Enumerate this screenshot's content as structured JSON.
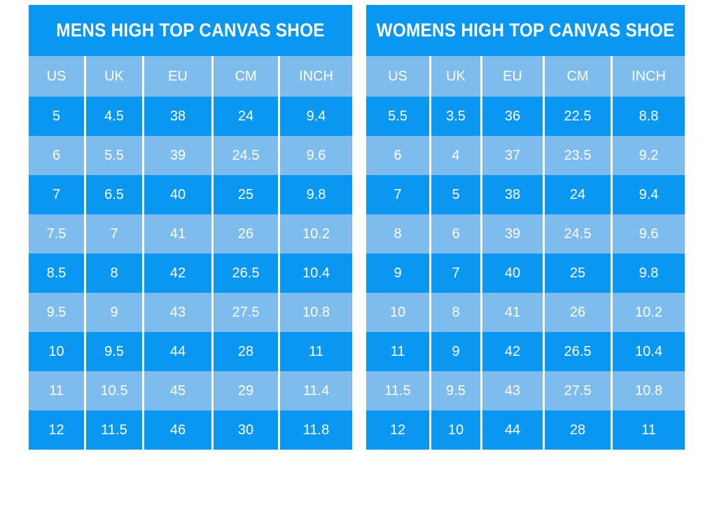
{
  "colors": {
    "dark_blue": "#0997f2",
    "light_blue": "#7dbcec",
    "separator_white": "#ffffff",
    "text_white": "#ffffff",
    "page_background": "#ffffff"
  },
  "chart_data": [
    {
      "type": "table",
      "title": "MENS HIGH TOP CANVAS SHOE",
      "columns": [
        "US",
        "UK",
        "EU",
        "CM",
        "INCH"
      ],
      "rows": [
        [
          "5",
          "4.5",
          "38",
          "24",
          "9.4"
        ],
        [
          "6",
          "5.5",
          "39",
          "24.5",
          "9.6"
        ],
        [
          "7",
          "6.5",
          "40",
          "25",
          "9.8"
        ],
        [
          "7.5",
          "7",
          "41",
          "26",
          "10.2"
        ],
        [
          "8.5",
          "8",
          "42",
          "26.5",
          "10.4"
        ],
        [
          "9.5",
          "9",
          "43",
          "27.5",
          "10.8"
        ],
        [
          "10",
          "9.5",
          "44",
          "28",
          "11"
        ],
        [
          "11",
          "10.5",
          "45",
          "29",
          "11.4"
        ],
        [
          "12",
          "11.5",
          "46",
          "30",
          "11.8"
        ]
      ]
    },
    {
      "type": "table",
      "title": "WOMENS HIGH TOP CANVAS SHOE",
      "columns": [
        "US",
        "UK",
        "EU",
        "CM",
        "INCH"
      ],
      "rows": [
        [
          "5.5",
          "3.5",
          "36",
          "22.5",
          "8.8"
        ],
        [
          "6",
          "4",
          "37",
          "23.5",
          "9.2"
        ],
        [
          "7",
          "5",
          "38",
          "24",
          "9.4"
        ],
        [
          "8",
          "6",
          "39",
          "24.5",
          "9.6"
        ],
        [
          "9",
          "7",
          "40",
          "25",
          "9.8"
        ],
        [
          "10",
          "8",
          "41",
          "26",
          "10.2"
        ],
        [
          "11",
          "9",
          "42",
          "26.5",
          "10.4"
        ],
        [
          "11.5",
          "9.5",
          "43",
          "27.5",
          "10.8"
        ],
        [
          "12",
          "10",
          "44",
          "28",
          "11"
        ]
      ]
    }
  ]
}
